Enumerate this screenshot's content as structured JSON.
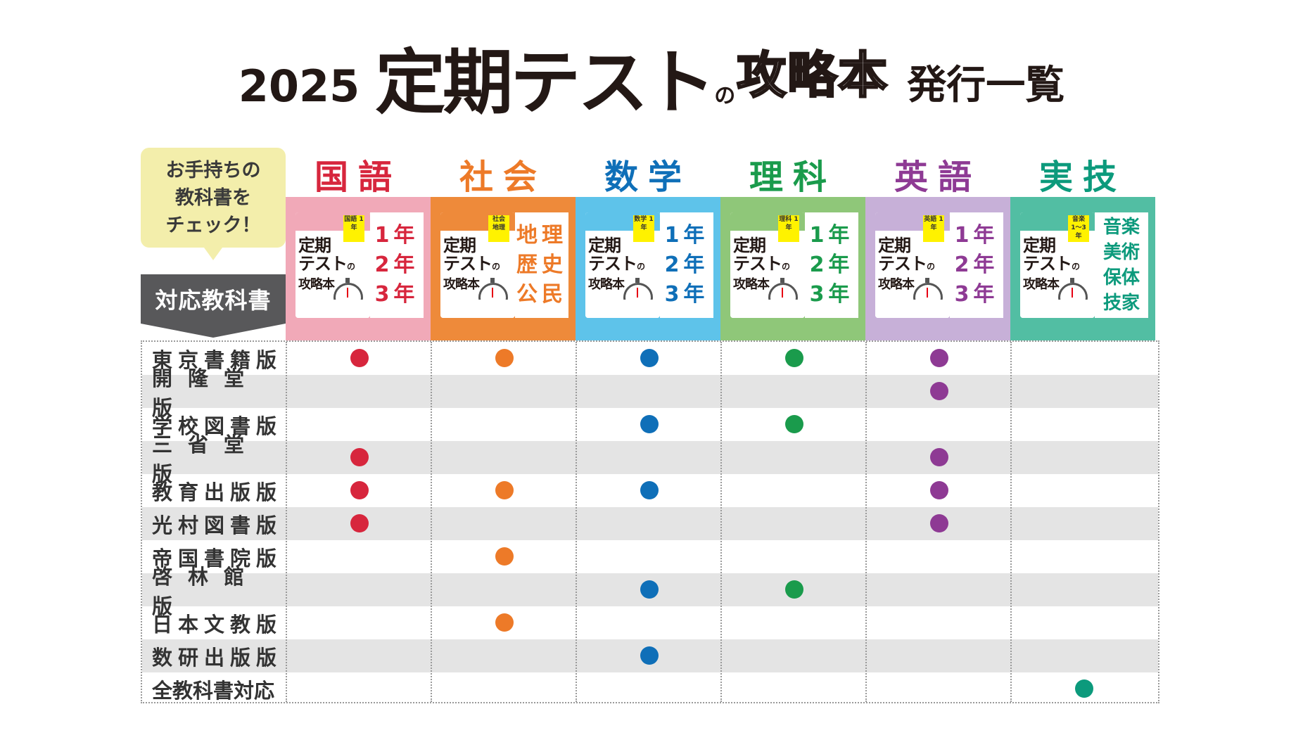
{
  "title": {
    "year": "2025",
    "main": "定期テスト",
    "no": "の",
    "book": "攻略本",
    "list": "発行一覧"
  },
  "bubble": {
    "line1": "お手持ちの",
    "line2": "教科書を",
    "line3": "チェック！"
  },
  "header_label": "対応教科書",
  "cover": {
    "title_line1": "定期",
    "title_line2": "テスト",
    "title_no": "の",
    "title_line3": "攻略本"
  },
  "subjects": [
    {
      "name": "国語",
      "color": "#d7263d",
      "bg": "#f1a9b8",
      "badge": "国語 1年",
      "grades": [
        "1年",
        "2年",
        "3年"
      ]
    },
    {
      "name": "社会",
      "color": "#ed7a28",
      "bg": "#ee8a3a",
      "badge": "社会 地理",
      "grades": [
        "地理",
        "歴史",
        "公民"
      ]
    },
    {
      "name": "数学",
      "color": "#0f6fb8",
      "bg": "#5ec3ea",
      "badge": "数学 1年",
      "grades": [
        "1年",
        "2年",
        "3年"
      ]
    },
    {
      "name": "理科",
      "color": "#1a9b4c",
      "bg": "#8fc779",
      "badge": "理科 1年",
      "grades": [
        "1年",
        "2年",
        "3年"
      ]
    },
    {
      "name": "英語",
      "color": "#8e3a94",
      "bg": "#c7b0d8",
      "badge": "英語 1年",
      "grades": [
        "1年",
        "2年",
        "3年"
      ]
    },
    {
      "name": "実技",
      "color": "#0c9a7c",
      "bg": "#52bea3",
      "badge": "音楽 1〜3年",
      "grades": [
        "音楽",
        "美術",
        "保体",
        "技家"
      ]
    }
  ],
  "publishers": [
    "東京書籍版",
    "開隆堂版",
    "学校図書版",
    "三省堂版",
    "教育出版版",
    "光村図書版",
    "帝国書院版",
    "啓林館版",
    "日本文教版",
    "数研出版版",
    "全教科書対応"
  ],
  "coverage": [
    [
      1,
      1,
      1,
      1,
      1,
      0
    ],
    [
      0,
      0,
      0,
      0,
      1,
      0
    ],
    [
      0,
      0,
      1,
      1,
      0,
      0
    ],
    [
      1,
      0,
      0,
      0,
      1,
      0
    ],
    [
      1,
      1,
      1,
      0,
      1,
      0
    ],
    [
      1,
      0,
      0,
      0,
      1,
      0
    ],
    [
      0,
      1,
      0,
      0,
      0,
      0
    ],
    [
      0,
      0,
      1,
      1,
      0,
      0
    ],
    [
      0,
      1,
      0,
      0,
      0,
      0
    ],
    [
      0,
      0,
      1,
      0,
      0,
      0
    ],
    [
      0,
      0,
      0,
      0,
      0,
      1
    ]
  ]
}
